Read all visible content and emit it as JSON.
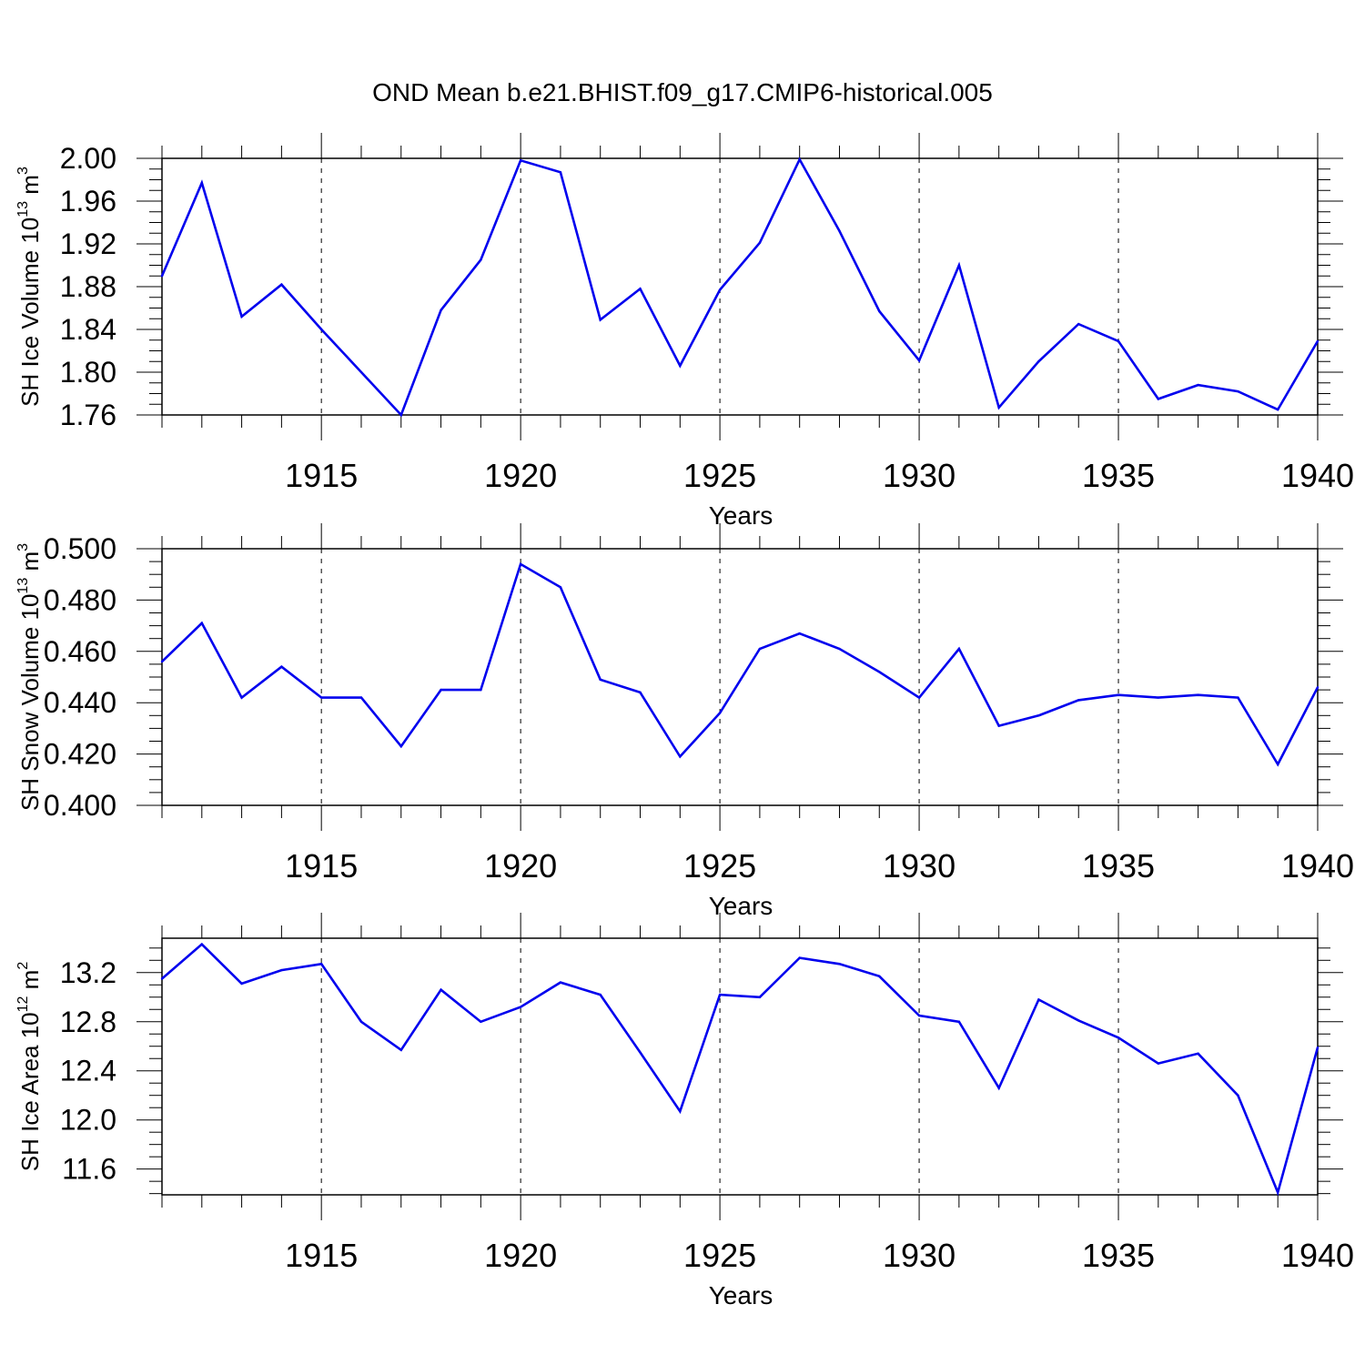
{
  "title": "OND Mean b.e21.BHIST.f09_g17.CMIP6-historical.005",
  "colors": {
    "line": "#0000ee",
    "axis": "#000000",
    "grid": "#000000"
  },
  "chart_data": [
    {
      "type": "line",
      "title": "",
      "xlabel": "Years",
      "ylabel": {
        "text": "SH Ice Volume 10",
        "sup1": "13",
        "mid": " m",
        "sup2": "3"
      },
      "xlim": [
        1911,
        1940
      ],
      "ylim": [
        1.76,
        2.0
      ],
      "xticks": [
        1915,
        1920,
        1925,
        1930,
        1935,
        1940
      ],
      "xtick_labels": [
        "1915",
        "1920",
        "1925",
        "1930",
        "1935",
        "1940"
      ],
      "yticks": [
        1.76,
        1.8,
        1.84,
        1.88,
        1.92,
        1.96,
        2.0
      ],
      "ytick_labels": [
        "1.76",
        "1.80",
        "1.84",
        "1.88",
        "1.92",
        "1.96",
        "2.00"
      ],
      "grid": "dashed vertical at major x ticks",
      "x": [
        1911,
        1912,
        1913,
        1914,
        1915,
        1916,
        1917,
        1918,
        1919,
        1920,
        1921,
        1922,
        1923,
        1924,
        1925,
        1926,
        1927,
        1928,
        1929,
        1930,
        1931,
        1932,
        1933,
        1934,
        1935,
        1936,
        1937,
        1938,
        1939,
        1940
      ],
      "values": [
        1.89,
        1.977,
        1.852,
        1.882,
        1.84,
        1.8,
        1.76,
        1.858,
        1.905,
        1.998,
        1.987,
        1.849,
        1.878,
        1.806,
        1.877,
        1.921,
        1.999,
        1.932,
        1.857,
        1.811,
        1.9,
        1.767,
        1.81,
        1.845,
        1.829,
        1.775,
        1.788,
        1.782,
        1.765,
        1.829
      ]
    },
    {
      "type": "line",
      "title": "",
      "xlabel": "Years",
      "ylabel": {
        "text": "SH Snow Volume 10",
        "sup1": "13",
        "mid": " m",
        "sup2": "3"
      },
      "xlim": [
        1911,
        1940
      ],
      "ylim": [
        0.4,
        0.5
      ],
      "xticks": [
        1915,
        1920,
        1925,
        1930,
        1935,
        1940
      ],
      "xtick_labels": [
        "1915",
        "1920",
        "1925",
        "1930",
        "1935",
        "1940"
      ],
      "yticks": [
        0.4,
        0.42,
        0.44,
        0.46,
        0.48,
        0.5
      ],
      "ytick_labels": [
        "0.400",
        "0.420",
        "0.440",
        "0.460",
        "0.480",
        "0.500"
      ],
      "grid": "dashed vertical at major x ticks",
      "x": [
        1911,
        1912,
        1913,
        1914,
        1915,
        1916,
        1917,
        1918,
        1919,
        1920,
        1921,
        1922,
        1923,
        1924,
        1925,
        1926,
        1927,
        1928,
        1929,
        1930,
        1931,
        1932,
        1933,
        1934,
        1935,
        1936,
        1937,
        1938,
        1939,
        1940
      ],
      "values": [
        0.456,
        0.471,
        0.442,
        0.454,
        0.442,
        0.442,
        0.423,
        0.445,
        0.445,
        0.494,
        0.485,
        0.449,
        0.444,
        0.419,
        0.436,
        0.461,
        0.467,
        0.461,
        0.452,
        0.442,
        0.461,
        0.431,
        0.435,
        0.441,
        0.443,
        0.442,
        0.443,
        0.442,
        0.416,
        0.446
      ]
    },
    {
      "type": "line",
      "title": "",
      "xlabel": "Years",
      "ylabel": {
        "text": "SH Ice Area 10",
        "sup1": "12",
        "mid": " m",
        "sup2": "2"
      },
      "xlim": [
        1911,
        1940
      ],
      "ylim": [
        11.39,
        13.48
      ],
      "xticks": [
        1915,
        1920,
        1925,
        1930,
        1935,
        1940
      ],
      "xtick_labels": [
        "1915",
        "1920",
        "1925",
        "1930",
        "1935",
        "1940"
      ],
      "yticks": [
        11.6,
        12.0,
        12.4,
        12.8,
        13.2
      ],
      "ytick_labels": [
        "11.6",
        "12.0",
        "12.4",
        "12.8",
        "13.2"
      ],
      "grid": "dashed vertical at major x ticks",
      "x": [
        1911,
        1912,
        1913,
        1914,
        1915,
        1916,
        1917,
        1918,
        1919,
        1920,
        1921,
        1922,
        1923,
        1924,
        1925,
        1926,
        1927,
        1928,
        1929,
        1930,
        1931,
        1932,
        1933,
        1934,
        1935,
        1936,
        1937,
        1938,
        1939,
        1940
      ],
      "values": [
        13.15,
        13.43,
        13.11,
        13.22,
        13.27,
        12.8,
        12.57,
        13.06,
        12.8,
        12.92,
        13.12,
        13.02,
        12.55,
        12.07,
        13.02,
        13.0,
        13.32,
        13.27,
        13.17,
        12.85,
        12.8,
        12.26,
        12.98,
        12.81,
        12.67,
        12.46,
        12.54,
        12.2,
        11.41,
        12.59
      ]
    }
  ]
}
